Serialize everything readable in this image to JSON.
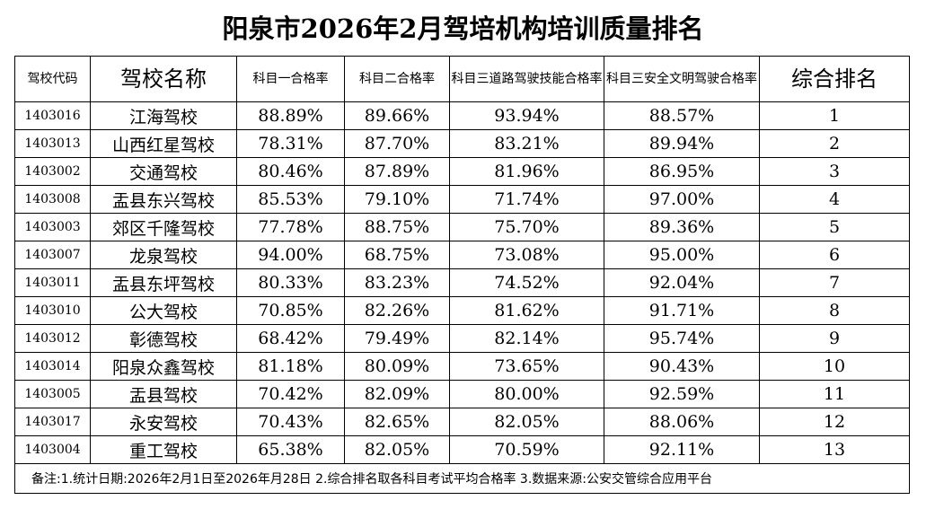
{
  "header": {
    "title": "阳泉市2026年2月驾培机构培训质量排名"
  },
  "table": {
    "columns": [
      "驾校代码",
      "驾校名称",
      "科目一合格率",
      "科目二合格率",
      "科目三道路驾驶技能合格率",
      "科目三安全文明驾驶合格率",
      "综合排名"
    ],
    "rows": [
      [
        "1403016",
        "江海驾校",
        "88.89%",
        "89.66%",
        "93.94%",
        "88.57%",
        1
      ],
      [
        "1403013",
        "山西红星驾校",
        "78.31%",
        "87.70%",
        "83.21%",
        "89.94%",
        2
      ],
      [
        "1403002",
        "交通驾校",
        "80.46%",
        "87.89%",
        "81.96%",
        "86.95%",
        3
      ],
      [
        "1403008",
        "盂县东兴驾校",
        "85.53%",
        "79.10%",
        "71.74%",
        "97.00%",
        4
      ],
      [
        "1403003",
        "郊区千隆驾校",
        "77.78%",
        "88.75%",
        "75.70%",
        "89.36%",
        5
      ],
      [
        "1403007",
        "龙泉驾校",
        "94.00%",
        "68.75%",
        "73.08%",
        "95.00%",
        6
      ],
      [
        "1403011",
        "盂县东坪驾校",
        "80.33%",
        "83.23%",
        "74.52%",
        "92.04%",
        7
      ],
      [
        "1403010",
        "公大驾校",
        "70.85%",
        "82.26%",
        "81.62%",
        "91.71%",
        8
      ],
      [
        "1403012",
        "彰德驾校",
        "68.42%",
        "79.49%",
        "82.14%",
        "95.74%",
        9
      ],
      [
        "1403014",
        "阳泉众鑫驾校",
        "81.18%",
        "80.09%",
        "73.65%",
        "90.43%",
        10
      ],
      [
        "1403005",
        "盂县驾校",
        "70.42%",
        "82.09%",
        "80.00%",
        "92.59%",
        11
      ],
      [
        "1403017",
        "永安驾校",
        "70.43%",
        "82.65%",
        "82.05%",
        "88.06%",
        12
      ],
      [
        "1403004",
        "重工驾校",
        "65.38%",
        "82.05%",
        "70.59%",
        "92.11%",
        13
      ]
    ],
    "note": "备注:1.统计日期:2026年2月1日至2026年月28日 2.综合排名取各科目考试平均合格率  3.数据来源:公安交管综合应用平台"
  }
}
